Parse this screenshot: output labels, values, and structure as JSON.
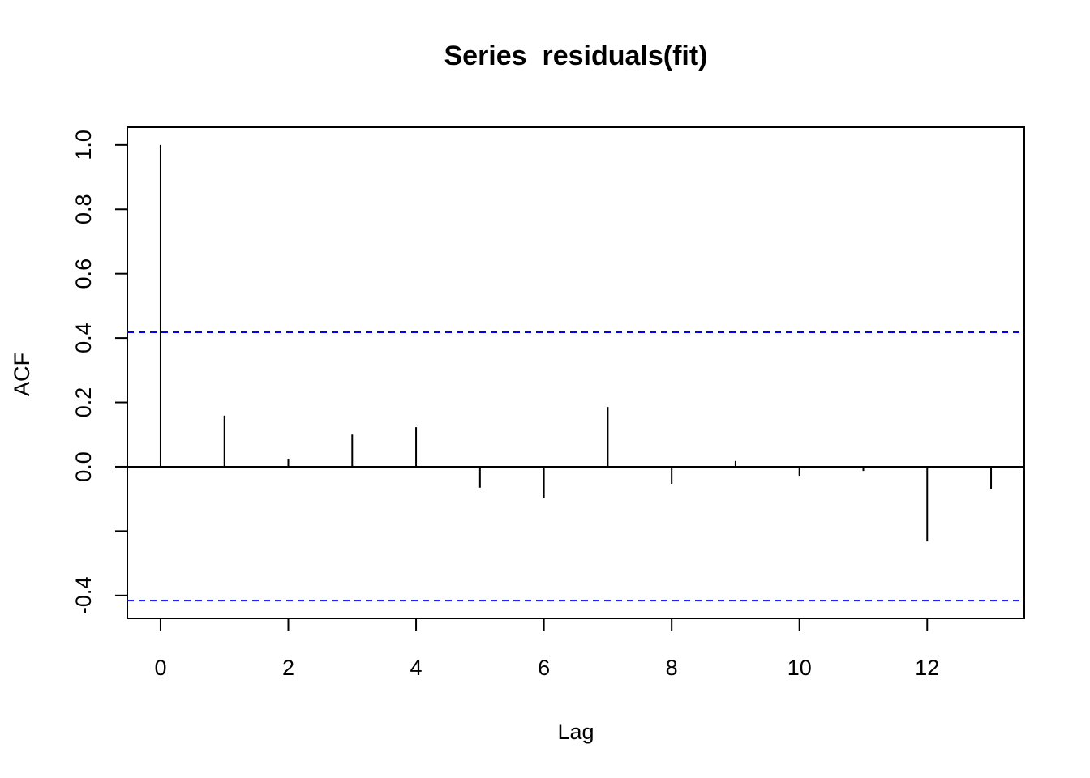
{
  "chart_data": {
    "type": "acf",
    "title": "Series  residuals(fit)",
    "x_label": "Lag",
    "y_label": "ACF",
    "x": [
      0,
      1,
      2,
      3,
      4,
      5,
      6,
      7,
      8,
      9,
      10,
      11,
      12,
      13
    ],
    "values": [
      1.0,
      0.159,
      0.025,
      0.1,
      0.123,
      -0.065,
      -0.098,
      0.186,
      -0.053,
      0.018,
      -0.028,
      -0.013,
      -0.232,
      -0.068
    ],
    "color": "#000000",
    "ci": [
      0.418,
      -0.416
    ],
    "ci_color": "#0000ff",
    "xlim": [
      -0.52,
      13.52
    ],
    "ylim": [
      -0.471,
      1.055
    ],
    "xticks": [
      0,
      2,
      4,
      6,
      8,
      10,
      12
    ],
    "yticks": [
      {
        "value": -0.4,
        "label": "-0.4"
      },
      {
        "value": -0.2,
        "label": null
      },
      {
        "value": 0,
        "label": "0.0"
      },
      0.2,
      0.4,
      0.6,
      0.8,
      {
        "value": 1,
        "label": "1.0"
      }
    ]
  }
}
